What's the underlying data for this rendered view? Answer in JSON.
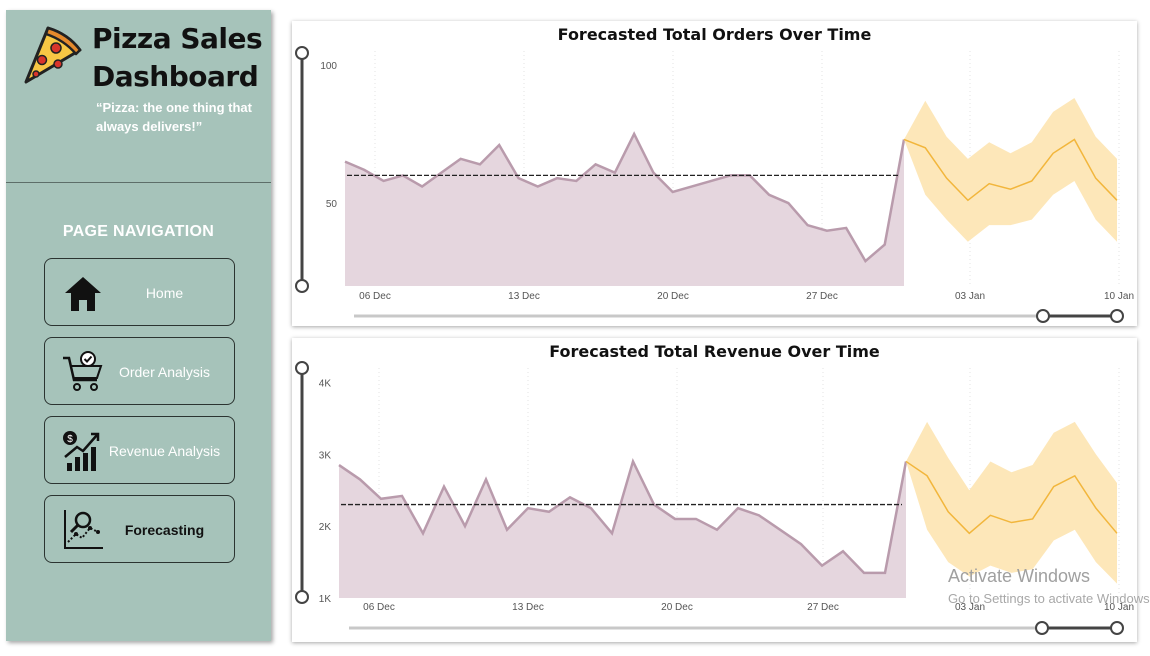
{
  "sidebar": {
    "title_line1": "Pizza Sales",
    "title_line2": "Dashboard",
    "quote": "“Pizza: the one thing that always delivers!”",
    "nav_heading": "PAGE NAVIGATION",
    "items": [
      {
        "label": "Home",
        "icon": "home-icon"
      },
      {
        "label": "Order Analysis",
        "icon": "cart-check-icon"
      },
      {
        "label": "Revenue Analysis",
        "icon": "revenue-growth-icon"
      },
      {
        "label": "Forecasting",
        "icon": "forecast-chart-icon",
        "active": true
      }
    ],
    "colors": {
      "background": "#a6c3ba"
    }
  },
  "watermark": {
    "line1": "Activate Windows",
    "line2": "Go to Settings to activate Windows."
  },
  "chart_data": [
    {
      "type": "area",
      "title": "Forecasted Total Orders Over Time",
      "x_ticks": [
        "06 Dec",
        "13 Dec",
        "20 Dec",
        "27 Dec",
        "03 Jan",
        "10 Jan"
      ],
      "y_ticks": [
        50,
        100
      ],
      "ylim": [
        20,
        105
      ],
      "x_start": "2015-12-05",
      "actual": [
        65,
        62,
        58,
        60,
        56,
        61,
        66,
        64,
        71,
        59,
        56,
        59,
        58,
        64,
        61,
        75,
        61,
        54,
        56,
        58,
        60,
        60,
        53,
        50,
        42,
        40,
        41,
        29,
        35,
        73
      ],
      "forecast": [
        73,
        70,
        59,
        51,
        57,
        55,
        58,
        68,
        73,
        59,
        51
      ],
      "forecast_upper": [
        73,
        87,
        74,
        66,
        72,
        68,
        72,
        83,
        88,
        74,
        66
      ],
      "forecast_lower": [
        73,
        53,
        44,
        36,
        42,
        42,
        44,
        53,
        58,
        44,
        36
      ],
      "reference_line": 60,
      "colors": {
        "actual_fill": "#e5d6de",
        "actual_line": "#b99bac",
        "forecast_line": "#f2b63c",
        "band": "#fde7b9",
        "reference": "#222222"
      }
    },
    {
      "type": "area",
      "title": "Forecasted Total Revenue Over Time",
      "x_ticks": [
        "06 Dec",
        "13 Dec",
        "20 Dec",
        "27 Dec",
        "03 Jan",
        "10 Jan"
      ],
      "y_ticks": [
        "1K",
        "2K",
        "3K",
        "4K"
      ],
      "ylim": [
        1000,
        4200
      ],
      "x_start": "2015-12-05",
      "actual": [
        2850,
        2650,
        2380,
        2420,
        1900,
        2550,
        2000,
        2650,
        1950,
        2250,
        2200,
        2400,
        2250,
        1900,
        2900,
        2300,
        2100,
        2100,
        1950,
        2250,
        2150,
        1950,
        1750,
        1450,
        1650,
        1350,
        1350,
        2900
      ],
      "forecast": [
        2900,
        2700,
        2200,
        1900,
        2150,
        2050,
        2100,
        2550,
        2700,
        2250,
        1900
      ],
      "forecast_upper": [
        2900,
        3450,
        2950,
        2500,
        2900,
        2750,
        2850,
        3300,
        3450,
        3000,
        2600
      ],
      "forecast_lower": [
        2900,
        1950,
        1500,
        1300,
        1450,
        1350,
        1400,
        1800,
        1950,
        1500,
        1200
      ],
      "reference_line": 2300,
      "colors": {
        "actual_fill": "#e5d6de",
        "actual_line": "#b99bac",
        "forecast_line": "#f2b63c",
        "band": "#fde7b9",
        "reference": "#222222"
      }
    }
  ]
}
